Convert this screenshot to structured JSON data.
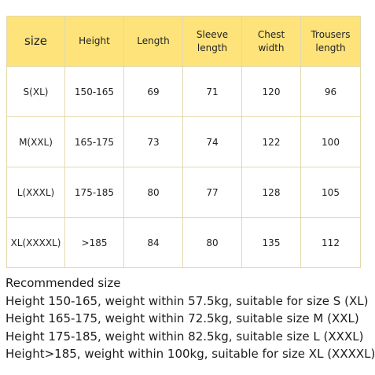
{
  "table": {
    "headers": [
      "size",
      "Height",
      "Length",
      "Sleeve length",
      "Chest width",
      "Trousers length"
    ],
    "rows": [
      [
        "S(XL)",
        "150-165",
        "69",
        "71",
        "120",
        "96"
      ],
      [
        "M(XXL)",
        "165-175",
        "73",
        "74",
        "122",
        "100"
      ],
      [
        "L(XXXL)",
        "175-185",
        "80",
        "77",
        "128",
        "105"
      ],
      [
        "XL(XXXXL)",
        ">185",
        "84",
        "80",
        "135",
        "112"
      ]
    ],
    "header_color": "#fde37a",
    "border_color": "#e2d9ac"
  },
  "notes": {
    "title": "Recommended size",
    "lines": [
      "Height 150-165, weight within 57.5kg, suitable for size S (XL)",
      "Height 165-175, weight within 72.5kg, suitable size M (XXL)",
      "Height 175-185, weight within 82.5kg, suitable size L (XXXL)",
      "Height>185, weight within 100kg, suitable for size XL (XXXXL)"
    ]
  }
}
